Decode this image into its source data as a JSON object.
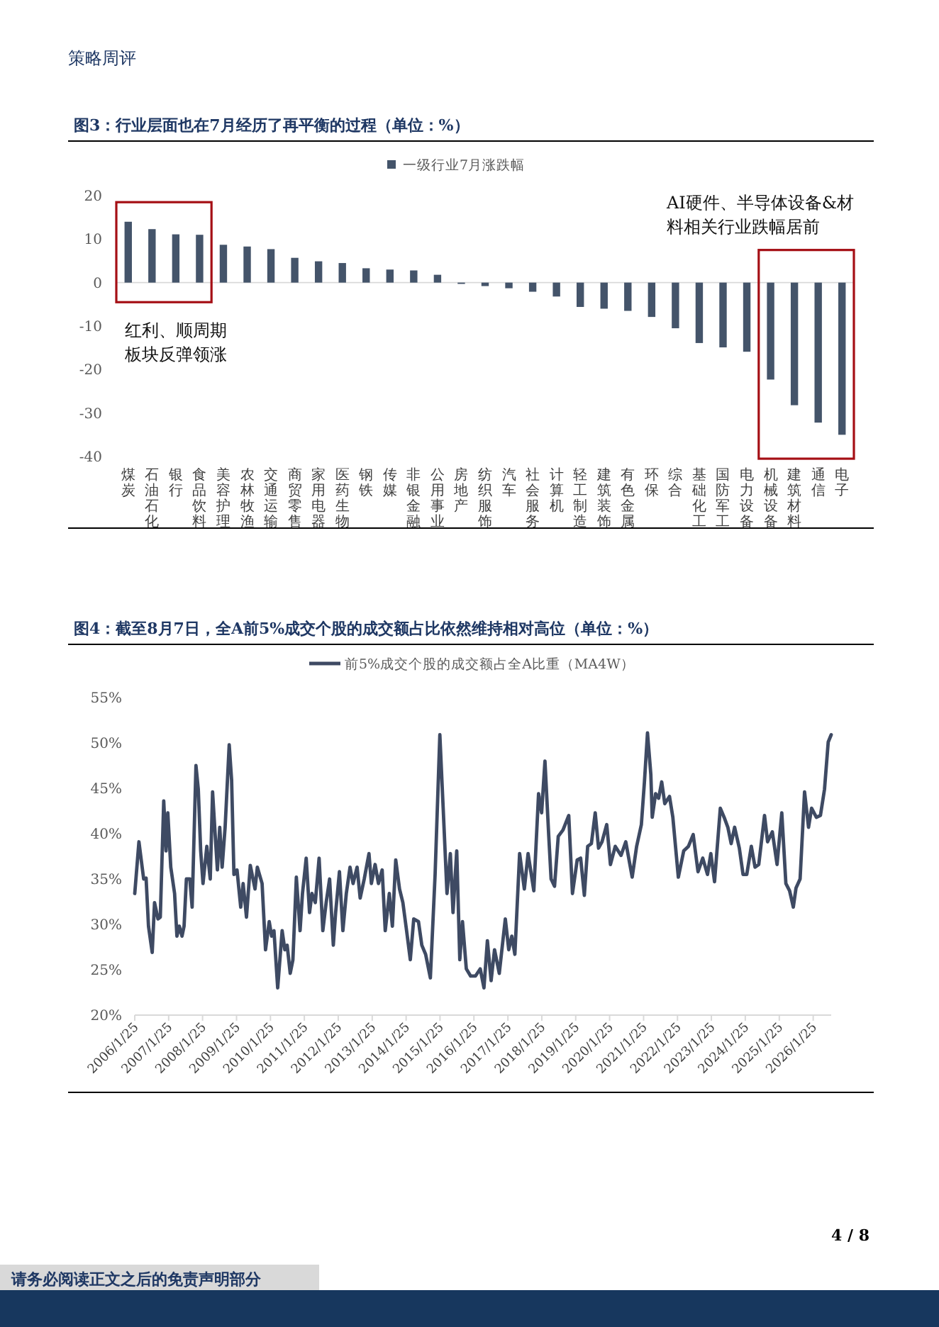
{
  "chart_data": [
    {
      "type": "bar",
      "title": "图3：行业层面也在7月经历了再平衡的过程（单位：%）",
      "categories": [
        "煤炭",
        "石油石化",
        "银行",
        "食品饮料",
        "美容护理",
        "农林牧渔",
        "交通运输",
        "商贸零售",
        "家用电器",
        "医药生物",
        "钢铁",
        "传媒",
        "非银金融",
        "公用事业",
        "房地产",
        "纺织服饰",
        "汽车",
        "社会服务",
        "计算机",
        "轻工制造",
        "建筑装饰",
        "有色金属",
        "环保",
        "综合",
        "基础化工",
        "国防军工",
        "电力设备",
        "机械设备",
        "建筑材料",
        "通信",
        "电子"
      ],
      "series": [
        {
          "name": "一级行业7月涨跌幅",
          "color": "#44546a",
          "values": [
            14.0,
            12.3,
            11.1,
            11.0,
            8.7,
            8.3,
            7.7,
            5.7,
            4.9,
            4.5,
            3.3,
            3.0,
            2.8,
            1.8,
            -0.3,
            -0.8,
            -1.3,
            -2.1,
            -3.2,
            -5.6,
            -6.0,
            -6.5,
            -7.9,
            -10.5,
            -13.9,
            -14.9,
            -15.9,
            -22.3,
            -28.2,
            -32.2,
            -35.0
          ]
        }
      ],
      "ylim": [
        -40,
        20
      ],
      "yticks": [
        -40,
        -30,
        -20,
        -10,
        0,
        10,
        20
      ],
      "legend": "top",
      "annotations": [
        "红利、顺周期板块反弹领涨",
        "AI硬件、半导体设备&材料相关行业跌幅居前",
        "策略周评"
      ]
    },
    {
      "type": "line",
      "title": "图4：截至8月7日，全A前5%成交个股的成交额占比依然维持相对高位（单位：%）",
      "x": [
        "2006-01-25",
        "2006-03-11",
        "2006-05-01",
        "2006-05-27",
        "2006-06-22",
        "2006-08-01",
        "2006-08-26",
        "2006-10-02",
        "2006-10-27",
        "2006-12-03",
        "2006-12-28",
        "2007-01-16",
        "2007-02-17",
        "2007-03-30",
        "2007-04-24",
        "2007-05-20",
        "2007-06-18",
        "2007-07-10",
        "2007-08-04",
        "2007-09-10",
        "2007-10-05",
        "2007-11-15",
        "2007-12-10",
        "2008-01-05",
        "2008-01-30",
        "2008-03-11",
        "2008-04-17",
        "2008-05-12",
        "2008-06-07",
        "2008-07-03",
        "2008-07-28",
        "2008-08-23",
        "2008-09-24",
        "2008-11-07",
        "2008-12-03",
        "2008-12-28",
        "2009-01-30",
        "2009-03-11",
        "2009-04-06",
        "2009-05-12",
        "2009-06-22",
        "2009-08-12",
        "2009-09-06",
        "2009-10-27",
        "2009-12-03",
        "2010-01-12",
        "2010-02-07",
        "2010-03-04",
        "2010-04-13",
        "2010-05-31",
        "2010-06-29",
        "2010-07-24",
        "2010-08-26",
        "2010-09-24",
        "2010-10-31",
        "2010-12-10",
        "2011-01-05",
        "2011-02-14",
        "2011-03-22",
        "2011-04-17",
        "2011-05-23",
        "2011-07-03",
        "2011-08-12",
        "2011-09-17",
        "2011-10-24",
        "2011-12-03",
        "2011-12-28",
        "2012-02-07",
        "2012-03-15",
        "2012-04-21",
        "2012-05-31",
        "2012-07-03",
        "2012-08-15",
        "2012-09-17",
        "2012-10-31",
        "2012-12-21",
        "2013-01-16",
        "2013-02-25",
        "2013-04-02",
        "2013-05-12",
        "2013-06-14",
        "2013-07-28",
        "2013-08-30",
        "2013-10-05",
        "2013-11-15",
        "2013-12-21",
        "2014-01-30",
        "2014-03-11",
        "2014-04-17",
        "2014-06-07",
        "2014-07-13",
        "2014-08-23",
        "2014-10-13",
        "2014-12-03",
        "2015-01-23",
        "2015-02-28",
        "2015-04-10",
        "2015-05-16",
        "2015-06-14",
        "2015-07-24",
        "2015-08-26",
        "2015-09-24",
        "2015-11-04",
        "2015-12-21",
        "2016-02-10",
        "2016-04-02",
        "2016-05-12",
        "2016-06-18",
        "2016-07-28",
        "2016-09-03",
        "2016-10-24",
        "2016-12-28",
        "2017-02-03",
        "2017-03-08",
        "2017-04-10",
        "2017-05-31",
        "2017-07-21",
        "2017-08-30",
        "2017-10-31",
        "2017-12-21",
        "2018-01-23",
        "2018-02-28",
        "2018-04-10",
        "2018-05-05",
        "2018-06-11",
        "2018-07-21",
        "2018-09-10",
        "2018-11-11",
        "2018-12-21",
        "2019-02-10",
        "2019-03-19",
        "2019-04-28",
        "2019-06-03",
        "2019-07-13",
        "2019-08-23",
        "2019-09-28",
        "2019-11-04",
        "2019-12-25",
        "2020-02-03",
        "2020-03-26",
        "2020-05-27",
        "2020-07-17",
        "2020-09-24",
        "2020-11-11",
        "2021-01-01",
        "2021-02-03",
        "2021-03-08",
        "2021-04-13",
        "2021-04-28",
        "2021-06-03",
        "2021-07-06",
        "2021-08-08",
        "2021-09-10",
        "2021-10-31",
        "2021-12-06",
        "2022-02-03",
        "2022-04-02",
        "2022-05-23",
        "2022-07-13",
        "2022-09-03",
        "2022-10-24",
        "2022-12-14",
        "2023-01-19",
        "2023-02-28",
        "2023-05-01",
        "2023-06-11",
        "2023-07-21",
        "2023-08-26",
        "2023-10-02",
        "2023-11-22",
        "2024-01-01",
        "2024-02-10",
        "2024-03-30",
        "2024-05-09",
        "2024-06-18",
        "2024-08-19",
        "2024-09-21",
        "2024-11-11",
        "2025-01-01",
        "2025-02-21",
        "2025-04-06",
        "2025-05-16",
        "2025-06-25",
        "2025-07-24",
        "2025-09-06",
        "2025-10-24",
        "2025-12-06",
        "2026-01-08",
        "2026-02-28",
        "2026-04-13",
        "2026-05-27",
        "2026-07-06",
        "2026-08-07"
      ],
      "series": [
        {
          "name": "前5%成交个股的成交额占全A比重（MA4W）",
          "color": "#3e4a63",
          "values": [
            33.4,
            39.1,
            35.0,
            35.1,
            29.8,
            26.9,
            32.4,
            30.6,
            30.8,
            43.6,
            38.1,
            42.3,
            36.3,
            33.4,
            28.7,
            29.8,
            28.7,
            29.8,
            35.0,
            35.0,
            31.9,
            47.5,
            44.9,
            38.1,
            34.5,
            38.6,
            35.0,
            44.6,
            40.2,
            36.0,
            40.7,
            36.3,
            40.7,
            49.8,
            45.9,
            35.5,
            36.0,
            31.9,
            34.5,
            30.8,
            36.5,
            33.9,
            36.3,
            34.5,
            27.2,
            30.3,
            28.7,
            29.3,
            23.0,
            29.3,
            27.2,
            27.7,
            24.6,
            26.1,
            35.2,
            29.3,
            33.4,
            37.3,
            31.3,
            33.4,
            32.4,
            37.3,
            29.3,
            32.4,
            35.0,
            27.7,
            31.3,
            35.8,
            29.3,
            33.4,
            36.3,
            34.5,
            36.3,
            32.9,
            35.0,
            37.8,
            34.5,
            36.6,
            34.5,
            36.0,
            29.3,
            33.4,
            29.8,
            37.1,
            33.9,
            32.4,
            29.3,
            26.1,
            30.6,
            30.3,
            27.7,
            26.7,
            24.1,
            35.5,
            50.9,
            42.8,
            33.4,
            37.8,
            31.3,
            38.1,
            26.1,
            30.3,
            25.1,
            24.3,
            24.3,
            25.1,
            23.0,
            28.2,
            23.8,
            27.2,
            24.6,
            30.6,
            27.2,
            28.7,
            26.7,
            37.8,
            33.9,
            37.8,
            33.7,
            44.4,
            42.3,
            48.0,
            39.7,
            35.0,
            34.2,
            39.7,
            40.4,
            42.0,
            33.4,
            37.1,
            37.3,
            33.2,
            38.6,
            38.9,
            42.3,
            38.4,
            39.1,
            41.0,
            36.6,
            38.6,
            37.6,
            39.1,
            35.2,
            38.6,
            41.0,
            45.7,
            51.1,
            46.5,
            41.8,
            44.4,
            43.9,
            45.7,
            43.3,
            44.1,
            41.8,
            35.2,
            38.1,
            38.6,
            39.9,
            35.8,
            37.3,
            35.5,
            37.8,
            34.7,
            42.8,
            41.8,
            40.7,
            38.9,
            40.7,
            38.4,
            35.5,
            35.5,
            38.6,
            36.3,
            36.6,
            42.0,
            39.1,
            40.2,
            36.6,
            42.3,
            34.5,
            33.7,
            31.9,
            34.0,
            35.0,
            44.6,
            40.7,
            42.8,
            41.8,
            42.0,
            44.9,
            50.1,
            50.9
          ]
        }
      ],
      "xlim": [
        "2006-01-25",
        "2026-08-07"
      ],
      "xticks": [
        {
          "value": "2006-01-25",
          "label": "2006/1/25"
        },
        {
          "value": "2007-01-25",
          "label": "2007/1/25"
        },
        {
          "value": "2008-01-25",
          "label": "2008/1/25"
        },
        {
          "value": "2009-01-25",
          "label": "2009/1/25"
        },
        {
          "value": "2010-01-25",
          "label": "2010/1/25"
        },
        {
          "value": "2011-01-25",
          "label": "2011/1/25"
        },
        {
          "value": "2012-01-25",
          "label": "2012/1/25"
        },
        {
          "value": "2013-01-25",
          "label": "2013/1/25"
        },
        {
          "value": "2014-01-25",
          "label": "2014/1/25"
        },
        {
          "value": "2015-01-25",
          "label": "2015/1/25"
        },
        {
          "value": "2016-01-25",
          "label": "2016/1/25"
        },
        {
          "value": "2017-01-25",
          "label": "2017/1/25"
        },
        {
          "value": "2018-01-25",
          "label": "2018/1/25"
        },
        {
          "value": "2019-01-25",
          "label": "2019/1/25"
        },
        {
          "value": "2020-01-25",
          "label": "2020/1/25"
        },
        {
          "value": "2021-01-25",
          "label": "2021/1/25"
        },
        {
          "value": "2022-01-25",
          "label": "2022/1/25"
        },
        {
          "value": "2023-01-25",
          "label": "2023/1/25"
        },
        {
          "value": "2024-01-25",
          "label": "2024/1/25"
        },
        {
          "value": "2025-01-25",
          "label": "2025/1/25"
        },
        {
          "value": "2026-01-25",
          "label": "2026/1/25"
        }
      ],
      "ylim": [
        20,
        55
      ],
      "yticks": [
        {
          "value": 20,
          "label": "20%"
        },
        {
          "value": 25,
          "label": "25%"
        },
        {
          "value": 30,
          "label": "30%"
        },
        {
          "value": 35,
          "label": "35%"
        },
        {
          "value": 40,
          "label": "40%"
        },
        {
          "value": 45,
          "label": "45%"
        },
        {
          "value": 50,
          "label": "50%"
        },
        {
          "value": 55,
          "label": "55%"
        }
      ],
      "legend": "top",
      "annotations": [
        "4 / 8",
        "请务必阅读正文之后的免责声明部分"
      ]
    }
  ]
}
